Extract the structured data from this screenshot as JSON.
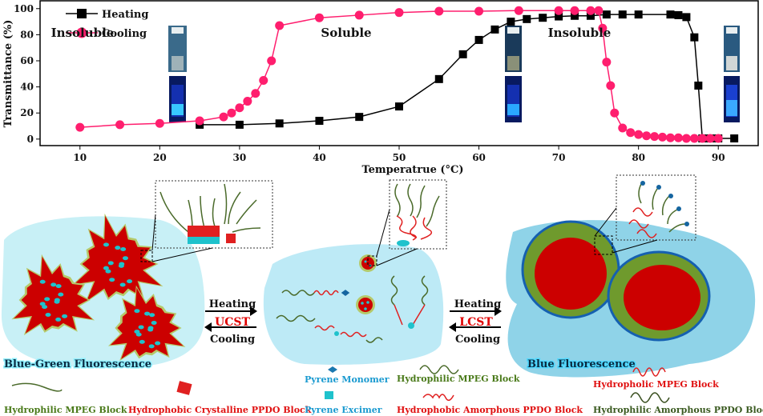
{
  "chart_data": {
    "type": "line",
    "title": "",
    "xlabel": "Temperatrue (°C)",
    "ylabel": "Transmittance (%)",
    "xlim": [
      5,
      95
    ],
    "ylim": [
      -5,
      106
    ],
    "xticks": [
      10,
      20,
      30,
      40,
      50,
      60,
      70,
      80,
      90
    ],
    "yticks": [
      0,
      20,
      40,
      60,
      80,
      100
    ],
    "grid": false,
    "legend_position": "top-left",
    "series": [
      {
        "name": "Heating",
        "marker": "square",
        "color": "#000000",
        "x": [
          25,
          30,
          35,
          40,
          45,
          50,
          55,
          58,
          60,
          62,
          64,
          66,
          68,
          70,
          72,
          74,
          76,
          78,
          80,
          84,
          85,
          86,
          87,
          87.5,
          88,
          89,
          90,
          92
        ],
        "y": [
          11,
          11,
          12,
          14,
          17,
          25,
          46,
          65,
          76,
          84,
          90,
          92,
          93,
          94,
          94.5,
          94.5,
          95.5,
          95.5,
          95.5,
          95.5,
          95,
          93.5,
          78,
          41,
          0.5,
          0.5,
          0.5,
          0.5
        ]
      },
      {
        "name": "Cooling",
        "marker": "circle",
        "color": "#ff1e6e",
        "x": [
          10,
          15,
          20,
          25,
          28,
          29,
          30,
          31,
          32,
          33,
          34,
          35,
          40,
          45,
          50,
          55,
          60,
          65,
          70,
          72,
          74,
          75,
          75.5,
          76,
          76.5,
          77,
          78,
          79,
          80,
          81,
          82,
          83,
          84,
          85,
          86,
          87,
          88,
          89,
          90
        ],
        "y": [
          9,
          11,
          12,
          14,
          17,
          20,
          24,
          29,
          35,
          45,
          60,
          87,
          93,
          95,
          97,
          98,
          98,
          98.5,
          98.5,
          98.5,
          98.5,
          98.5,
          85,
          59,
          41,
          20,
          8.5,
          5,
          3.5,
          2.5,
          2,
          1.5,
          1,
          1,
          0.5,
          0.5,
          0.5,
          0.5,
          0.5
        ]
      }
    ]
  },
  "diagram": {
    "states": [
      "Insoluble",
      "Soluble",
      "Insoluble"
    ],
    "transition1": {
      "top": "Heating",
      "middle": "UCST",
      "bottom": "Cooling"
    },
    "transition2": {
      "top": "Heating",
      "middle": "LCST",
      "bottom": "Cooling"
    },
    "fluorescence_left": "Blue-Green Fluorescence",
    "fluorescence_right": "Blue Fluorescence",
    "legend": {
      "left_mpeg": "Hydrophilic MPEG Block",
      "left_ppdo": "Hydrophobic Crystalline PPDO Block",
      "pyrene_monomer": "Pyrene Monomer",
      "pyrene_excimer": "Pyrene Excimer",
      "mid_mpeg": "Hydrophilic MPEG Block",
      "mid_ppdo": "Hydrophobic Amorphous PPDO Block",
      "right_mpeg": "Hydropholic MPEG Block",
      "right_ppdo": "Hydrophilic Amorphous PPDO Block"
    },
    "colors": {
      "core": "#cc0000",
      "shell": "#6f9a2d",
      "water_light": "#c8f0f6",
      "water": "#8fd3e8",
      "pyrene": "#1fc2cc",
      "outline": "#1560b0"
    }
  }
}
